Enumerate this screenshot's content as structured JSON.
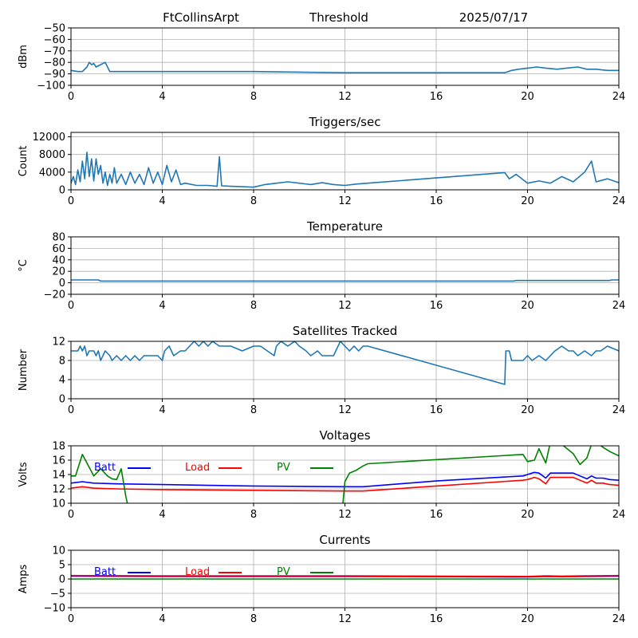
{
  "header": {
    "station": "FtCollinsArpt",
    "plot_name": "Threshold",
    "date": "2025/07/17"
  },
  "colors": {
    "series_default": "#1f77b4",
    "batt": "#0000ff",
    "load": "#ff0000",
    "pv": "#008000",
    "grid": "#b0b0b0"
  },
  "chart_data": [
    {
      "type": "line",
      "title": "",
      "xlabel": "",
      "ylabel": "dBm",
      "xlim": [
        0,
        24
      ],
      "ylim": [
        -100,
        -50
      ],
      "xticks": [
        0,
        4,
        8,
        12,
        16,
        20,
        24
      ],
      "yticks": [
        -100,
        -90,
        -80,
        -70,
        -60,
        -50
      ],
      "ytick_labels": [
        "−100",
        "−90",
        "−80",
        "−70",
        "−60",
        "−50"
      ],
      "grid": true,
      "series": [
        {
          "x": [
            0,
            0.3,
            0.5,
            0.7,
            0.8,
            0.9,
            1.0,
            1.1,
            1.2,
            1.3,
            1.5,
            1.6,
            1.7,
            4,
            8,
            12,
            16,
            19.0,
            19.3,
            19.6,
            20,
            20.4,
            20.8,
            21.3,
            21.7,
            22.2,
            22.6,
            23.0,
            23.5,
            24
          ],
          "y": [
            -87,
            -88,
            -88,
            -84,
            -80,
            -82,
            -81,
            -84,
            -83,
            -82,
            -80,
            -84,
            -88,
            -88,
            -88,
            -89,
            -89,
            -89,
            -87,
            -86,
            -85,
            -84,
            -85,
            -86,
            -85,
            -84,
            -86,
            -86,
            -87,
            -87
          ]
        }
      ]
    },
    {
      "type": "line",
      "title": "Triggers/sec",
      "xlabel": "",
      "ylabel": "Count",
      "xlim": [
        0,
        24
      ],
      "ylim": [
        0,
        13000
      ],
      "xticks": [
        0,
        4,
        8,
        12,
        16,
        20,
        24
      ],
      "yticks": [
        0,
        4000,
        8000,
        12000
      ],
      "ytick_labels": [
        "0",
        "4000",
        "8000",
        "12000"
      ],
      "grid": true,
      "series": [
        {
          "x": [
            0,
            0.1,
            0.2,
            0.3,
            0.4,
            0.5,
            0.6,
            0.7,
            0.8,
            0.9,
            1.0,
            1.1,
            1.2,
            1.3,
            1.4,
            1.5,
            1.6,
            1.7,
            1.8,
            1.9,
            2.0,
            2.2,
            2.4,
            2.6,
            2.8,
            3.0,
            3.2,
            3.4,
            3.6,
            3.8,
            4.0,
            4.2,
            4.4,
            4.6,
            4.8,
            5.0,
            5.5,
            6.0,
            6.4,
            6.5,
            6.6,
            7.0,
            7.5,
            8.0,
            8.5,
            9.0,
            9.5,
            10.0,
            10.5,
            11.0,
            11.5,
            12.0,
            12.5,
            13.0,
            19.0,
            19.2,
            19.5,
            20.0,
            20.5,
            21.0,
            21.5,
            22.0,
            22.5,
            22.8,
            23.0,
            23.5,
            24.0
          ],
          "y": [
            1500,
            3000,
            1200,
            4500,
            1800,
            6500,
            2500,
            8500,
            3000,
            7000,
            2000,
            7000,
            3500,
            5500,
            1500,
            4000,
            1000,
            3500,
            1500,
            5000,
            1500,
            3500,
            1200,
            4000,
            1500,
            3500,
            1200,
            5000,
            1500,
            4000,
            1200,
            5500,
            1800,
            4500,
            1200,
            1500,
            1000,
            1000,
            800,
            7500,
            900,
            800,
            700,
            600,
            1200,
            1500,
            1800,
            1500,
            1200,
            1600,
            1200,
            1000,
            1300,
            1500,
            3900,
            2500,
            3500,
            1500,
            2000,
            1500,
            3000,
            1800,
            4000,
            6500,
            1800,
            2500,
            1600
          ]
        }
      ]
    },
    {
      "type": "line",
      "title": "Temperature",
      "xlabel": "",
      "ylabel": "°C",
      "xlim": [
        0,
        24
      ],
      "ylim": [
        -20,
        80
      ],
      "xticks": [
        0,
        4,
        8,
        12,
        16,
        20,
        24
      ],
      "yticks": [
        -20,
        0,
        20,
        40,
        60,
        80
      ],
      "ytick_labels": [
        "−20",
        "0",
        "20",
        "40",
        "60",
        "80"
      ],
      "grid": true,
      "series": [
        {
          "x": [
            0,
            1.2,
            1.3,
            19.4,
            19.5,
            23.6,
            23.7,
            24
          ],
          "y": [
            5,
            5,
            3,
            3,
            4,
            4,
            5,
            5
          ]
        }
      ]
    },
    {
      "type": "line",
      "title": "Satellites Tracked",
      "xlabel": "",
      "ylabel": "Number",
      "xlim": [
        0,
        24
      ],
      "ylim": [
        0,
        12
      ],
      "xticks": [
        0,
        4,
        8,
        12,
        16,
        20,
        24
      ],
      "yticks": [
        0,
        4,
        8,
        12
      ],
      "ytick_labels": [
        "0",
        "4",
        "8",
        "12"
      ],
      "grid": true,
      "series": [
        {
          "x": [
            0,
            0.3,
            0.4,
            0.5,
            0.6,
            0.7,
            0.8,
            1.0,
            1.1,
            1.2,
            1.3,
            1.5,
            1.7,
            1.8,
            2.0,
            2.2,
            2.4,
            2.6,
            2.8,
            3.0,
            3.2,
            3.5,
            3.8,
            4.0,
            4.1,
            4.3,
            4.5,
            4.8,
            5.0,
            5.2,
            5.4,
            5.6,
            5.8,
            6.0,
            6.2,
            6.5,
            7.0,
            7.5,
            8.0,
            8.3,
            8.6,
            8.9,
            9.0,
            9.2,
            9.5,
            9.8,
            10.0,
            10.3,
            10.5,
            10.8,
            11.0,
            11.5,
            11.8,
            12.0,
            12.2,
            12.4,
            12.6,
            12.8,
            13.0,
            19.0,
            19.05,
            19.2,
            19.3,
            19.5,
            19.8,
            20.0,
            20.2,
            20.5,
            20.8,
            21.0,
            21.2,
            21.5,
            21.8,
            22.0,
            22.2,
            22.5,
            22.8,
            23.0,
            23.2,
            23.5,
            24.0
          ],
          "y": [
            10,
            10,
            11,
            10,
            11,
            9,
            10,
            10,
            9,
            10,
            8,
            10,
            9,
            8,
            9,
            8,
            9,
            8,
            9,
            8,
            9,
            9,
            9,
            8,
            10,
            11,
            9,
            10,
            10,
            11,
            12,
            11,
            12,
            11,
            12,
            11,
            11,
            10,
            11,
            11,
            10,
            9,
            11,
            12,
            11,
            12,
            11,
            10,
            9,
            10,
            9,
            9,
            12,
            11,
            10,
            11,
            10,
            11,
            11,
            3,
            10,
            10,
            8,
            8,
            8,
            9,
            8,
            9,
            8,
            9,
            10,
            11,
            10,
            10,
            9,
            10,
            9,
            10,
            10,
            11,
            10
          ]
        }
      ]
    },
    {
      "type": "line",
      "title": "Voltages",
      "xlabel": "",
      "ylabel": "Volts",
      "xlim": [
        0,
        24
      ],
      "ylim": [
        10,
        18
      ],
      "xticks": [
        0,
        4,
        8,
        12,
        16,
        20,
        24
      ],
      "yticks": [
        10,
        12,
        14,
        16,
        18
      ],
      "ytick_labels": [
        "10",
        "12",
        "14",
        "16",
        "18"
      ],
      "grid": true,
      "legend": [
        "Batt",
        "Load",
        "PV"
      ],
      "legend_placement": "inside-top",
      "series": [
        {
          "name": "Batt",
          "x": [
            0,
            0.5,
            1.0,
            2.0,
            4.0,
            8.0,
            12.0,
            12.8,
            16.0,
            19.8,
            20.0,
            20.3,
            20.5,
            20.8,
            21.0,
            21.5,
            22.0,
            22.3,
            22.6,
            22.8,
            23.0,
            23.3,
            23.6,
            24.0
          ],
          "y": [
            12.8,
            13.0,
            12.8,
            12.7,
            12.6,
            12.4,
            12.3,
            12.3,
            13.1,
            13.8,
            14.0,
            14.3,
            14.2,
            13.5,
            14.2,
            14.2,
            14.2,
            13.8,
            13.4,
            13.8,
            13.5,
            13.5,
            13.3,
            13.2
          ]
        },
        {
          "name": "Load",
          "x": [
            0,
            0.5,
            1.0,
            2.0,
            4.0,
            8.0,
            12.0,
            12.8,
            16.0,
            19.8,
            20.0,
            20.3,
            20.5,
            20.8,
            21.0,
            21.5,
            22.0,
            22.3,
            22.6,
            22.8,
            23.0,
            23.3,
            23.6,
            24.0
          ],
          "y": [
            12.1,
            12.3,
            12.1,
            12.0,
            11.9,
            11.8,
            11.7,
            11.7,
            12.4,
            13.2,
            13.3,
            13.6,
            13.4,
            12.7,
            13.6,
            13.6,
            13.6,
            13.2,
            12.8,
            13.2,
            12.8,
            12.8,
            12.6,
            12.5
          ]
        },
        {
          "name": "PV",
          "x": [
            0,
            0.2,
            0.5,
            0.8,
            1.0,
            1.3,
            1.6,
            1.8,
            2.0,
            2.2,
            2.4,
            2.5,
            11.9,
            12.0,
            12.2,
            12.5,
            12.8,
            13.0,
            19.8,
            20.0,
            20.3,
            20.5,
            20.8,
            21.0,
            21.5,
            22.0,
            22.3,
            22.6,
            22.8,
            23.0,
            23.3,
            23.6,
            24.0
          ],
          "y": [
            13.8,
            13.8,
            16.8,
            15.0,
            13.8,
            14.8,
            13.8,
            13.4,
            13.3,
            14.8,
            11.0,
            9.5,
            9.5,
            13.0,
            14.2,
            14.6,
            15.2,
            15.5,
            16.8,
            15.8,
            16.0,
            17.6,
            15.6,
            18.5,
            18.2,
            16.9,
            15.4,
            16.3,
            18.2,
            18.5,
            17.8,
            17.2,
            16.6
          ]
        }
      ]
    },
    {
      "type": "line",
      "title": "Currents",
      "xlabel": "",
      "ylabel": "Amps",
      "xlim": [
        0,
        24
      ],
      "ylim": [
        -10,
        10
      ],
      "xticks": [
        0,
        4,
        8,
        12,
        16,
        20,
        24
      ],
      "yticks": [
        -10,
        -5,
        0,
        5,
        10
      ],
      "ytick_labels": [
        "−10",
        "−5",
        "0",
        "5",
        "10"
      ],
      "grid": true,
      "legend": [
        "Batt",
        "Load",
        "PV"
      ],
      "legend_placement": "inside-top",
      "series": [
        {
          "name": "Batt",
          "x": [
            0,
            4,
            8,
            12,
            16,
            20,
            20.8,
            21.5,
            22.5,
            24
          ],
          "y": [
            1.0,
            0.9,
            0.9,
            0.9,
            0.8,
            0.7,
            0.9,
            0.8,
            0.9,
            1.0
          ]
        },
        {
          "name": "Load",
          "x": [
            0,
            4,
            8,
            12,
            16,
            20,
            20.8,
            21.5,
            22.5,
            24
          ],
          "y": [
            1.2,
            1.1,
            1.1,
            1.1,
            1.0,
            0.9,
            1.1,
            1.0,
            1.1,
            1.2
          ]
        },
        {
          "name": "PV",
          "x": [
            0,
            4,
            8,
            12,
            16,
            20,
            24
          ],
          "y": [
            0,
            0,
            0,
            0,
            0,
            0,
            0
          ]
        }
      ]
    }
  ]
}
